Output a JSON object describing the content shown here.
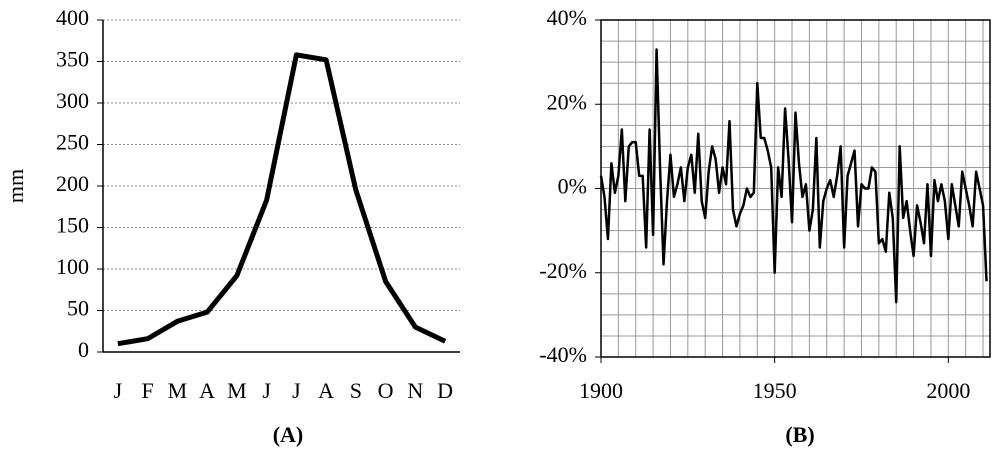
{
  "chart_data": [
    {
      "type": "line",
      "caption": "(A)",
      "y_label": "mm",
      "categories": [
        "J",
        "F",
        "M",
        "A",
        "M",
        "J",
        "J",
        "A",
        "S",
        "O",
        "N",
        "D"
      ],
      "values": [
        10,
        16,
        37,
        48,
        92,
        183,
        358,
        352,
        195,
        85,
        30,
        13
      ],
      "color": "#000000",
      "ylim": [
        0,
        400
      ],
      "yticks": [
        0,
        50,
        100,
        150,
        200,
        250,
        300,
        350,
        400
      ],
      "grid": true
    },
    {
      "type": "line",
      "caption": "(B)",
      "x": [
        1900,
        1901,
        1902,
        1903,
        1904,
        1905,
        1906,
        1907,
        1908,
        1909,
        1910,
        1911,
        1912,
        1913,
        1914,
        1915,
        1916,
        1917,
        1918,
        1919,
        1920,
        1921,
        1922,
        1923,
        1924,
        1925,
        1926,
        1927,
        1928,
        1929,
        1930,
        1931,
        1932,
        1933,
        1934,
        1935,
        1936,
        1937,
        1938,
        1939,
        1940,
        1941,
        1942,
        1943,
        1944,
        1945,
        1946,
        1947,
        1948,
        1949,
        1950,
        1951,
        1952,
        1953,
        1954,
        1955,
        1956,
        1957,
        1958,
        1959,
        1960,
        1961,
        1962,
        1963,
        1964,
        1965,
        1966,
        1967,
        1968,
        1969,
        1970,
        1971,
        1972,
        1973,
        1974,
        1975,
        1976,
        1977,
        1978,
        1979,
        1980,
        1981,
        1982,
        1983,
        1984,
        1985,
        1986,
        1987,
        1988,
        1989,
        1990,
        1991,
        1992,
        1993,
        1994,
        1995,
        1996,
        1997,
        1998,
        1999,
        2000,
        2001,
        2002,
        2003,
        2004,
        2005,
        2006,
        2007,
        2008,
        2009,
        2010,
        2011
      ],
      "values": [
        3,
        -2,
        -12,
        6,
        -1,
        3,
        14,
        -3,
        10,
        11,
        11,
        3,
        3,
        -14,
        14,
        -11,
        33,
        5,
        -18,
        -3,
        8,
        -2,
        1,
        5,
        -3,
        5,
        8,
        -1,
        13,
        -3,
        -7,
        4,
        10,
        7,
        -1,
        5,
        1,
        16,
        -5,
        -9,
        -6,
        -4,
        0,
        -2,
        -1,
        25,
        12,
        12,
        9,
        5,
        -20,
        5,
        -2,
        19,
        7,
        -8,
        18,
        6,
        -2,
        1,
        -10,
        -5,
        12,
        -14,
        -3,
        0,
        2,
        -2,
        3,
        10,
        -14,
        3,
        6,
        9,
        -9,
        1,
        0,
        0,
        5,
        4,
        -13,
        -12,
        -15,
        -1,
        -7,
        -27,
        10,
        -7,
        -3,
        -10,
        -16,
        -4,
        -8,
        -13,
        1,
        -16,
        2,
        -3,
        1,
        -3,
        -12,
        1,
        -4,
        -9,
        4,
        0,
        -4,
        -9,
        4,
        0,
        -4,
        -22
      ],
      "color": "#000000",
      "xlim": [
        1900,
        2012
      ],
      "xticks": [
        1900,
        1950,
        2000
      ],
      "ylim": [
        -40,
        40
      ],
      "yticks": [
        {
          "value": -40,
          "label": "-40%"
        },
        {
          "value": -20,
          "label": "-20%"
        },
        {
          "value": 0,
          "label": "0%"
        },
        {
          "value": 20,
          "label": "20%"
        },
        {
          "value": 40,
          "label": "40%"
        }
      ],
      "xgrid": [
        1905,
        1910,
        1915,
        1920,
        1925,
        1930,
        1935,
        1940,
        1945,
        1950,
        1955,
        1960,
        1965,
        1970,
        1975,
        1980,
        1985,
        1990,
        1995,
        2000,
        2005,
        2010
      ],
      "ygrid": [
        -35,
        -30,
        -25,
        -20,
        -15,
        -10,
        -5,
        0,
        5,
        10,
        15,
        20,
        25,
        30,
        35
      ],
      "grid": true
    }
  ]
}
